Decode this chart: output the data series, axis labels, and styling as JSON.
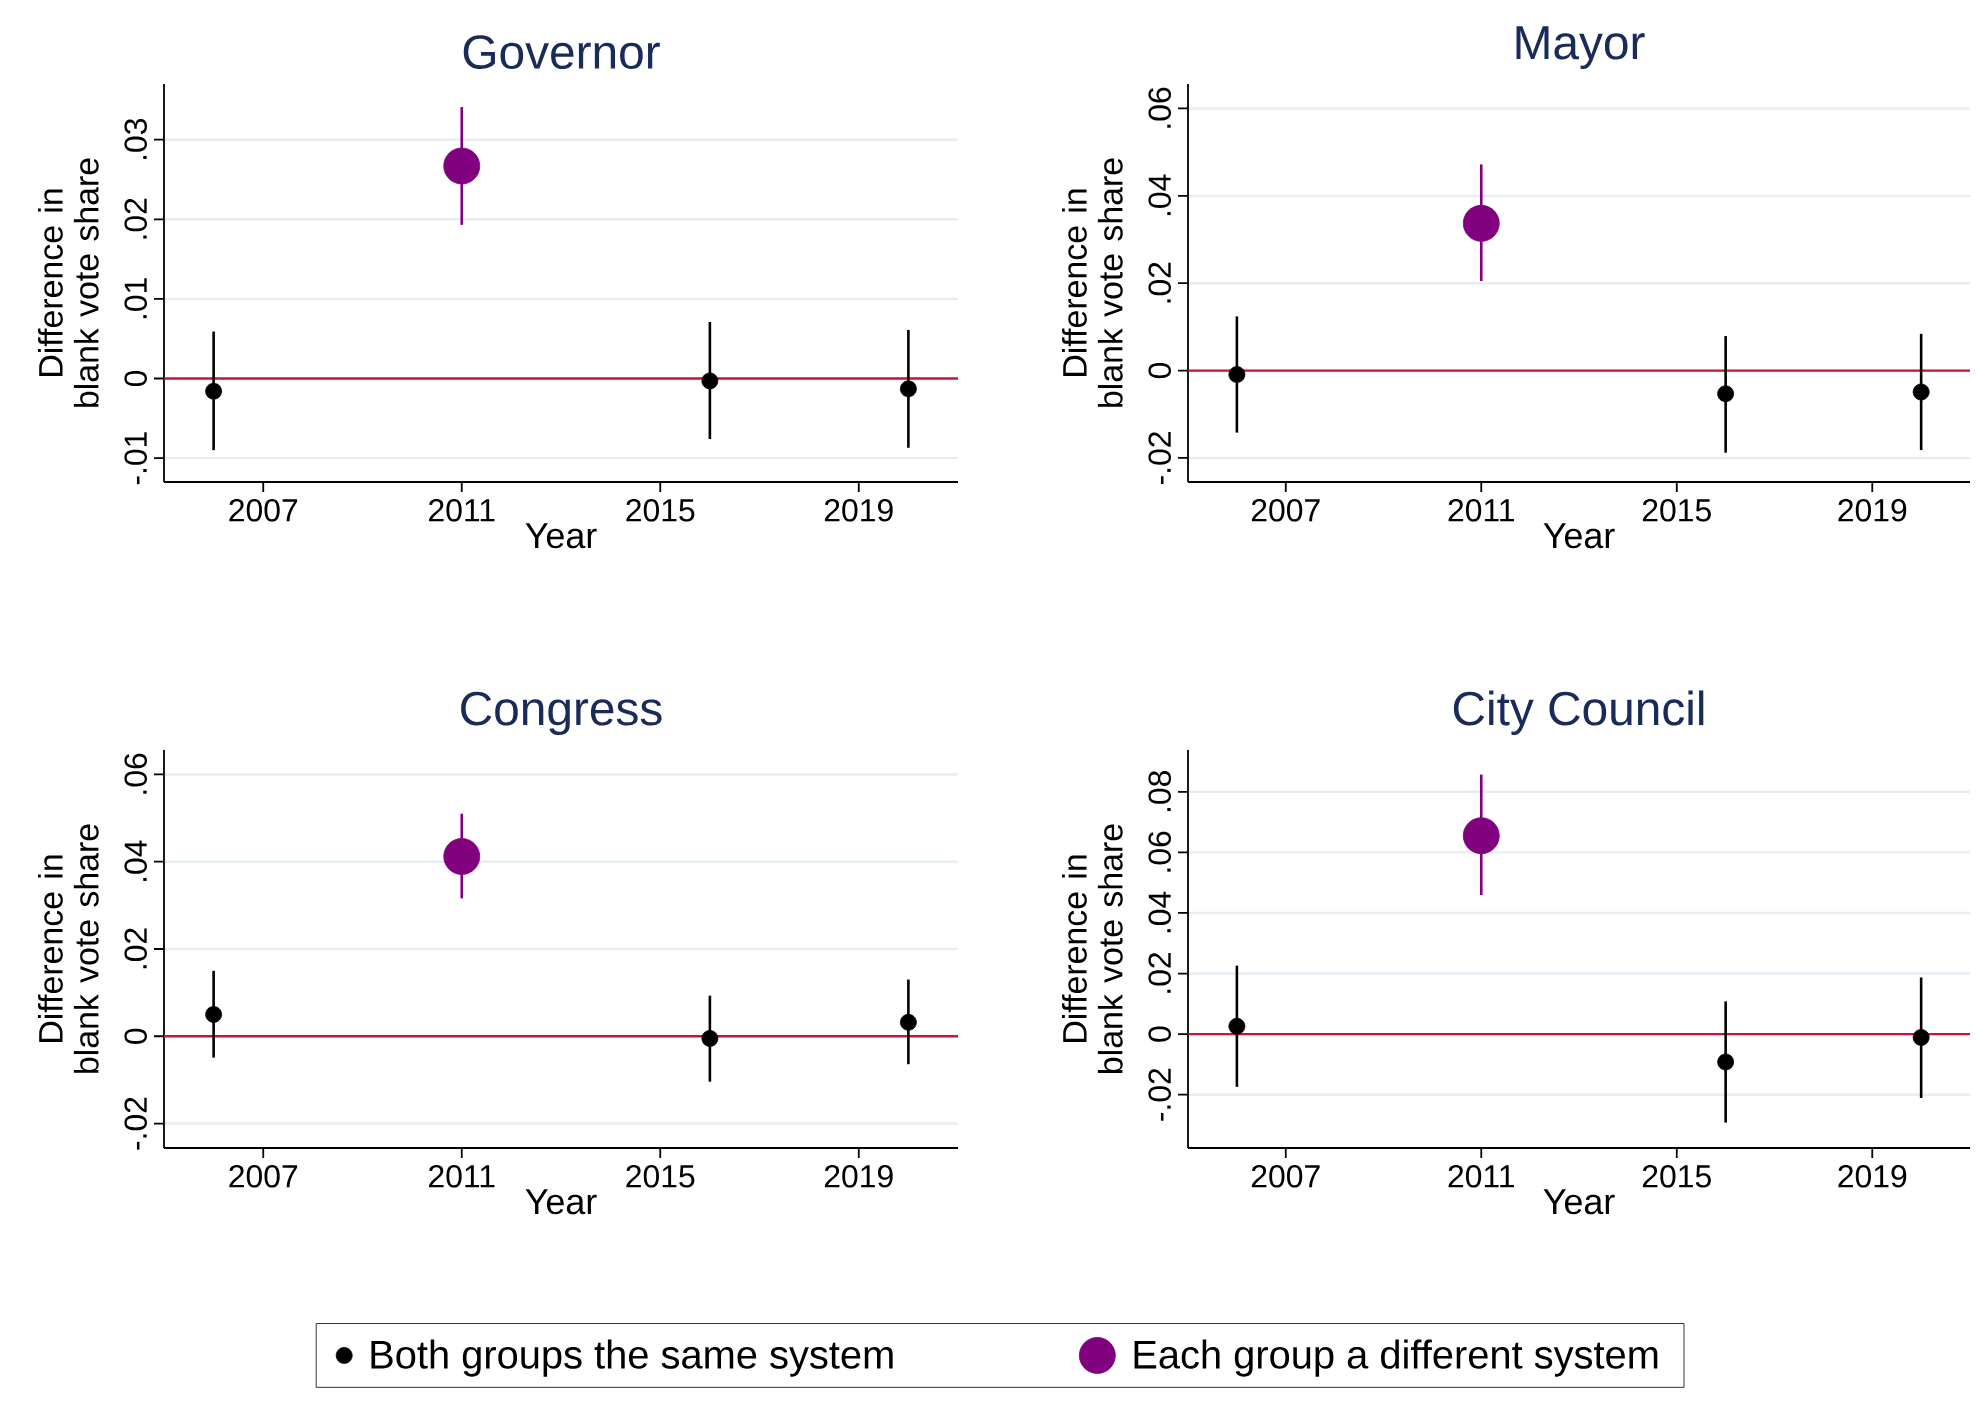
{
  "chart_data": [
    {
      "type": "scatter",
      "title": "Governor",
      "xlabel": "Year",
      "ylabel": "Difference in blank vote share",
      "xlim": [
        2005,
        2021
      ],
      "xticks": [
        2007,
        2011,
        2015,
        2019
      ],
      "ylim": [
        -0.013,
        0.037
      ],
      "yticks": [
        {
          "value": -0.01,
          "label": "-.01"
        },
        0,
        {
          "value": 0.01,
          "label": ".01"
        },
        {
          "value": 0.02,
          "label": ".02"
        },
        {
          "value": 0.03,
          "label": ".03"
        }
      ],
      "grid": "y",
      "marker": "circle",
      "ref_lines": [
        {
          "axis": "y",
          "value": 0,
          "color": "#c8143c"
        }
      ],
      "series": [
        {
          "color": "#000000",
          "x": [
            2006,
            2016,
            2020
          ],
          "values": [
            -0.0016,
            -0.0003,
            -0.0013
          ],
          "errors": [
            [
              -0.009,
              0.0059
            ],
            [
              -0.0076,
              0.0071
            ],
            [
              -0.0087,
              0.0061
            ]
          ]
        },
        {
          "color": "#800080",
          "x": [
            2011
          ],
          "values": [
            0.0267
          ],
          "errors": [
            [
              0.0193,
              0.0341
            ]
          ]
        }
      ]
    },
    {
      "type": "scatter",
      "title": "Mayor",
      "xlabel": "Year",
      "ylabel": "Difference in blank vote share",
      "xlim": [
        2005,
        2021
      ],
      "xticks": [
        2007,
        2011,
        2015,
        2019
      ],
      "ylim": [
        -0.0255,
        0.0656
      ],
      "yticks": [
        {
          "value": -0.02,
          "label": "-.02"
        },
        0,
        {
          "value": 0.02,
          "label": ".02"
        },
        {
          "value": 0.04,
          "label": ".04"
        },
        {
          "value": 0.06,
          "label": ".06"
        }
      ],
      "grid": "y",
      "marker": "circle",
      "ref_lines": [
        {
          "axis": "y",
          "value": 0,
          "color": "#c8143c"
        }
      ],
      "series": [
        {
          "color": "#000000",
          "x": [
            2006,
            2016,
            2020
          ],
          "values": [
            -0.0009,
            -0.0053,
            -0.0049
          ],
          "errors": [
            [
              -0.0142,
              0.0124
            ],
            [
              -0.0188,
              0.0079
            ],
            [
              -0.0182,
              0.0084
            ]
          ]
        },
        {
          "color": "#800080",
          "x": [
            2011
          ],
          "values": [
            0.0337
          ],
          "errors": [
            [
              0.0205,
              0.0472
            ]
          ]
        }
      ]
    },
    {
      "type": "scatter",
      "title": "Congress",
      "xlabel": "Year",
      "ylabel": "Difference in blank vote share",
      "xlim": [
        2005,
        2021
      ],
      "xticks": [
        2007,
        2011,
        2015,
        2019
      ],
      "ylim": [
        -0.0256,
        0.0656
      ],
      "yticks": [
        {
          "value": -0.02,
          "label": "-.02"
        },
        0,
        {
          "value": 0.02,
          "label": ".02"
        },
        {
          "value": 0.04,
          "label": ".04"
        },
        {
          "value": 0.06,
          "label": ".06"
        }
      ],
      "grid": "y",
      "marker": "circle",
      "legend": "bottom",
      "ref_lines": [
        {
          "axis": "y",
          "value": 0,
          "color": "#c8143c"
        }
      ],
      "series": [
        {
          "name": "Both groups the same system",
          "color": "#000000",
          "x": [
            2006,
            2016,
            2020
          ],
          "values": [
            0.005,
            -0.0005,
            0.0032
          ],
          "errors": [
            [
              -0.0049,
              0.015
            ],
            [
              -0.0104,
              0.0093
            ],
            [
              -0.0064,
              0.013
            ]
          ]
        },
        {
          "name": "Each group a different system",
          "color": "#800080",
          "x": [
            2011
          ],
          "values": [
            0.0412
          ],
          "errors": [
            [
              0.0316,
              0.051
            ]
          ]
        }
      ]
    },
    {
      "type": "scatter",
      "title": "City Council",
      "xlabel": "Year",
      "ylabel": "Difference in blank vote share",
      "xlim": [
        2005,
        2021
      ],
      "xticks": [
        2007,
        2011,
        2015,
        2019
      ],
      "ylim": [
        -0.0376,
        0.0938
      ],
      "yticks": [
        {
          "value": -0.02,
          "label": "-.02"
        },
        0,
        {
          "value": 0.02,
          "label": ".02"
        },
        {
          "value": 0.04,
          "label": ".04"
        },
        {
          "value": 0.06,
          "label": ".06"
        },
        {
          "value": 0.08,
          "label": ".08"
        }
      ],
      "grid": "y",
      "marker": "circle",
      "ref_lines": [
        {
          "axis": "y",
          "value": 0,
          "color": "#c8143c"
        }
      ],
      "series": [
        {
          "color": "#000000",
          "x": [
            2006,
            2016,
            2020
          ],
          "values": [
            0.0026,
            -0.0092,
            -0.0011
          ],
          "errors": [
            [
              -0.0174,
              0.0226
            ],
            [
              -0.0292,
              0.0108
            ],
            [
              -0.0211,
              0.0187
            ]
          ]
        },
        {
          "color": "#800080",
          "x": [
            2011
          ],
          "values": [
            0.0655
          ],
          "errors": [
            [
              0.0459,
              0.0857
            ]
          ]
        }
      ]
    }
  ]
}
